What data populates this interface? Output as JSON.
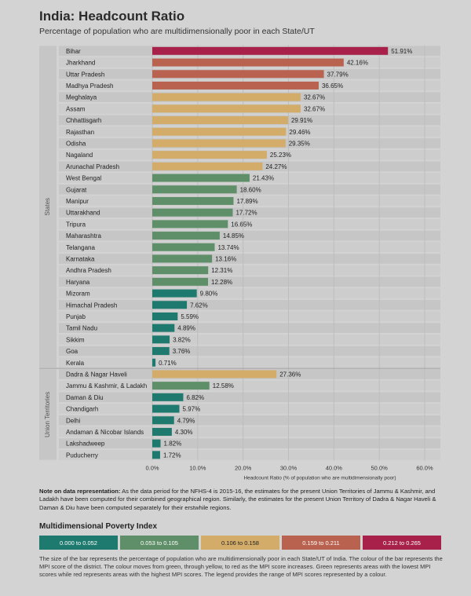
{
  "header": {
    "title": "India: Headcount Ratio",
    "subtitle": "Percentage of population who are multidimensionally poor in each State/UT"
  },
  "chart_data": {
    "type": "bar",
    "orientation": "horizontal",
    "xlabel": "Headcount Ratio (% of population who are multidimensionally poor)",
    "xlim": [
      0,
      60
    ],
    "xticks": [
      "0.0%",
      "10.0%",
      "20.0%",
      "30.0%",
      "40.0%",
      "50.0%",
      "60.0%"
    ],
    "grid": true,
    "groups": [
      {
        "label": "States",
        "rows": [
          {
            "name": "Bihar",
            "value": 51.91,
            "label": "51.91%",
            "color": "#a8214a"
          },
          {
            "name": "Jharkhand",
            "value": 42.16,
            "label": "42.16%",
            "color": "#b8624f"
          },
          {
            "name": "Uttar Pradesh",
            "value": 37.79,
            "label": "37.79%",
            "color": "#b8624f"
          },
          {
            "name": "Madhya Pradesh",
            "value": 36.65,
            "label": "36.65%",
            "color": "#b8624f"
          },
          {
            "name": "Meghalaya",
            "value": 32.67,
            "label": "32.67%",
            "color": "#d2ac68"
          },
          {
            "name": "Assam",
            "value": 32.67,
            "label": "32.67%",
            "color": "#d2ac68"
          },
          {
            "name": "Chhattisgarh",
            "value": 29.91,
            "label": "29.91%",
            "color": "#d2ac68"
          },
          {
            "name": "Rajasthan",
            "value": 29.46,
            "label": "29.46%",
            "color": "#d2ac68"
          },
          {
            "name": "Odisha",
            "value": 29.35,
            "label": "29.35%",
            "color": "#d2ac68"
          },
          {
            "name": "Nagaland",
            "value": 25.23,
            "label": "25.23%",
            "color": "#d2ac68"
          },
          {
            "name": "Arunachal Pradesh",
            "value": 24.27,
            "label": "24.27%",
            "color": "#d2ac68"
          },
          {
            "name": "West Bengal",
            "value": 21.43,
            "label": "21.43%",
            "color": "#5e8f68"
          },
          {
            "name": "Gujarat",
            "value": 18.6,
            "label": "18.60%",
            "color": "#5e8f68"
          },
          {
            "name": "Manipur",
            "value": 17.89,
            "label": "17.89%",
            "color": "#5e8f68"
          },
          {
            "name": "Uttarakhand",
            "value": 17.72,
            "label": "17.72%",
            "color": "#5e8f68"
          },
          {
            "name": "Tripura",
            "value": 16.65,
            "label": "16.65%",
            "color": "#5e8f68"
          },
          {
            "name": "Maharashtra",
            "value": 14.85,
            "label": "14.85%",
            "color": "#5e8f68"
          },
          {
            "name": "Telangana",
            "value": 13.74,
            "label": "13.74%",
            "color": "#5e8f68"
          },
          {
            "name": "Karnataka",
            "value": 13.16,
            "label": "13.16%",
            "color": "#5e8f68"
          },
          {
            "name": "Andhra Pradesh",
            "value": 12.31,
            "label": "12.31%",
            "color": "#5e8f68"
          },
          {
            "name": "Haryana",
            "value": 12.28,
            "label": "12.28%",
            "color": "#5e8f68"
          },
          {
            "name": "Mizoram",
            "value": 9.8,
            "label": "9.80%",
            "color": "#1e7a6e"
          },
          {
            "name": "Himachal Pradesh",
            "value": 7.62,
            "label": "7.62%",
            "color": "#1e7a6e"
          },
          {
            "name": "Punjab",
            "value": 5.59,
            "label": "5.59%",
            "color": "#1e7a6e"
          },
          {
            "name": "Tamil Nadu",
            "value": 4.89,
            "label": "4.89%",
            "color": "#1e7a6e"
          },
          {
            "name": "Sikkim",
            "value": 3.82,
            "label": "3.82%",
            "color": "#1e7a6e"
          },
          {
            "name": "Goa",
            "value": 3.76,
            "label": "3.76%",
            "color": "#1e7a6e"
          },
          {
            "name": "Kerala",
            "value": 0.71,
            "label": "0.71%",
            "color": "#1e7a6e"
          }
        ]
      },
      {
        "label": "Union Territories",
        "rows": [
          {
            "name": "Dadra & Nagar Haveli",
            "value": 27.36,
            "label": "27.36%",
            "color": "#d2ac68"
          },
          {
            "name": "Jammu & Kashmir, & Ladakh",
            "value": 12.58,
            "label": "12.58%",
            "color": "#5e8f68"
          },
          {
            "name": "Daman & Diu",
            "value": 6.82,
            "label": "6.82%",
            "color": "#1e7a6e"
          },
          {
            "name": "Chandigarh",
            "value": 5.97,
            "label": "5.97%",
            "color": "#1e7a6e"
          },
          {
            "name": "Delhi",
            "value": 4.79,
            "label": "4.79%",
            "color": "#1e7a6e"
          },
          {
            "name": "Andaman & Nicobar Islands",
            "value": 4.3,
            "label": "4.30%",
            "color": "#1e7a6e"
          },
          {
            "name": "Lakshadweep",
            "value": 1.82,
            "label": "1.82%",
            "color": "#1e7a6e"
          },
          {
            "name": "Puducherry",
            "value": 1.72,
            "label": "1.72%",
            "color": "#1e7a6e"
          }
        ]
      }
    ]
  },
  "note": {
    "heading": "Note on data representation:",
    "text": " As the data period for the NFHS-4 is 2015-16, the estimates for the present Union Territories of Jammu & Kashmir, and Ladakh have been computed for their combined geographical region. Similarly, the estimates for the present Union Territory of Dadra & Nagar Haveli & Daman & Diu have been computed separately for their erstwhile regions."
  },
  "legend": {
    "title": "Multidimensional Poverty Index",
    "items": [
      {
        "label": "0.000 to 0.052",
        "color": "#1e7a6e"
      },
      {
        "label": "0.053 to 0.105",
        "color": "#5e8f68"
      },
      {
        "label": "0.106 to 0.158",
        "color": "#d2ac68"
      },
      {
        "label": "0.159 to 0.211",
        "color": "#b8624f"
      },
      {
        "label": "0.212 to 0.265",
        "color": "#a8214a"
      }
    ]
  },
  "description": "The size of the bar represents the percentage of population who are multidimensionally poor in each State/UT of India. The colour of the bar represents the MPI score of the district. The colour moves from green, through yellow, to red as the MPI score increases. Green represents areas with the lowest MPI scores while red represents areas with the highest MPI scores. The legend provides the range of MPI scores represented by a colour."
}
